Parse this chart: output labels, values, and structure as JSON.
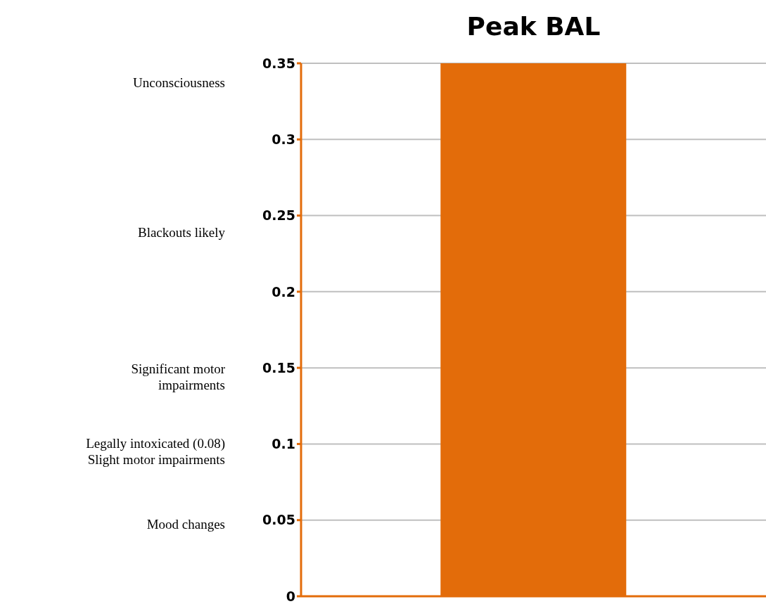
{
  "chart_data": {
    "type": "bar",
    "title": "Peak BAL",
    "categories": [
      null
    ],
    "values": [
      0.35
    ],
    "color": "#e36c0a",
    "ylim": [
      0,
      0.35
    ],
    "yticks": [
      0,
      0.05,
      0.1,
      0.15,
      0.2,
      0.25,
      0.3,
      0.35
    ],
    "grid": "y",
    "legend": false,
    "annotations": [
      "Unconsciousness",
      "Blackouts likely",
      "Significant motor\nimpairments",
      "Legally intoxicated (0.08)\nSlight motor impairments",
      "Mood changes"
    ]
  }
}
